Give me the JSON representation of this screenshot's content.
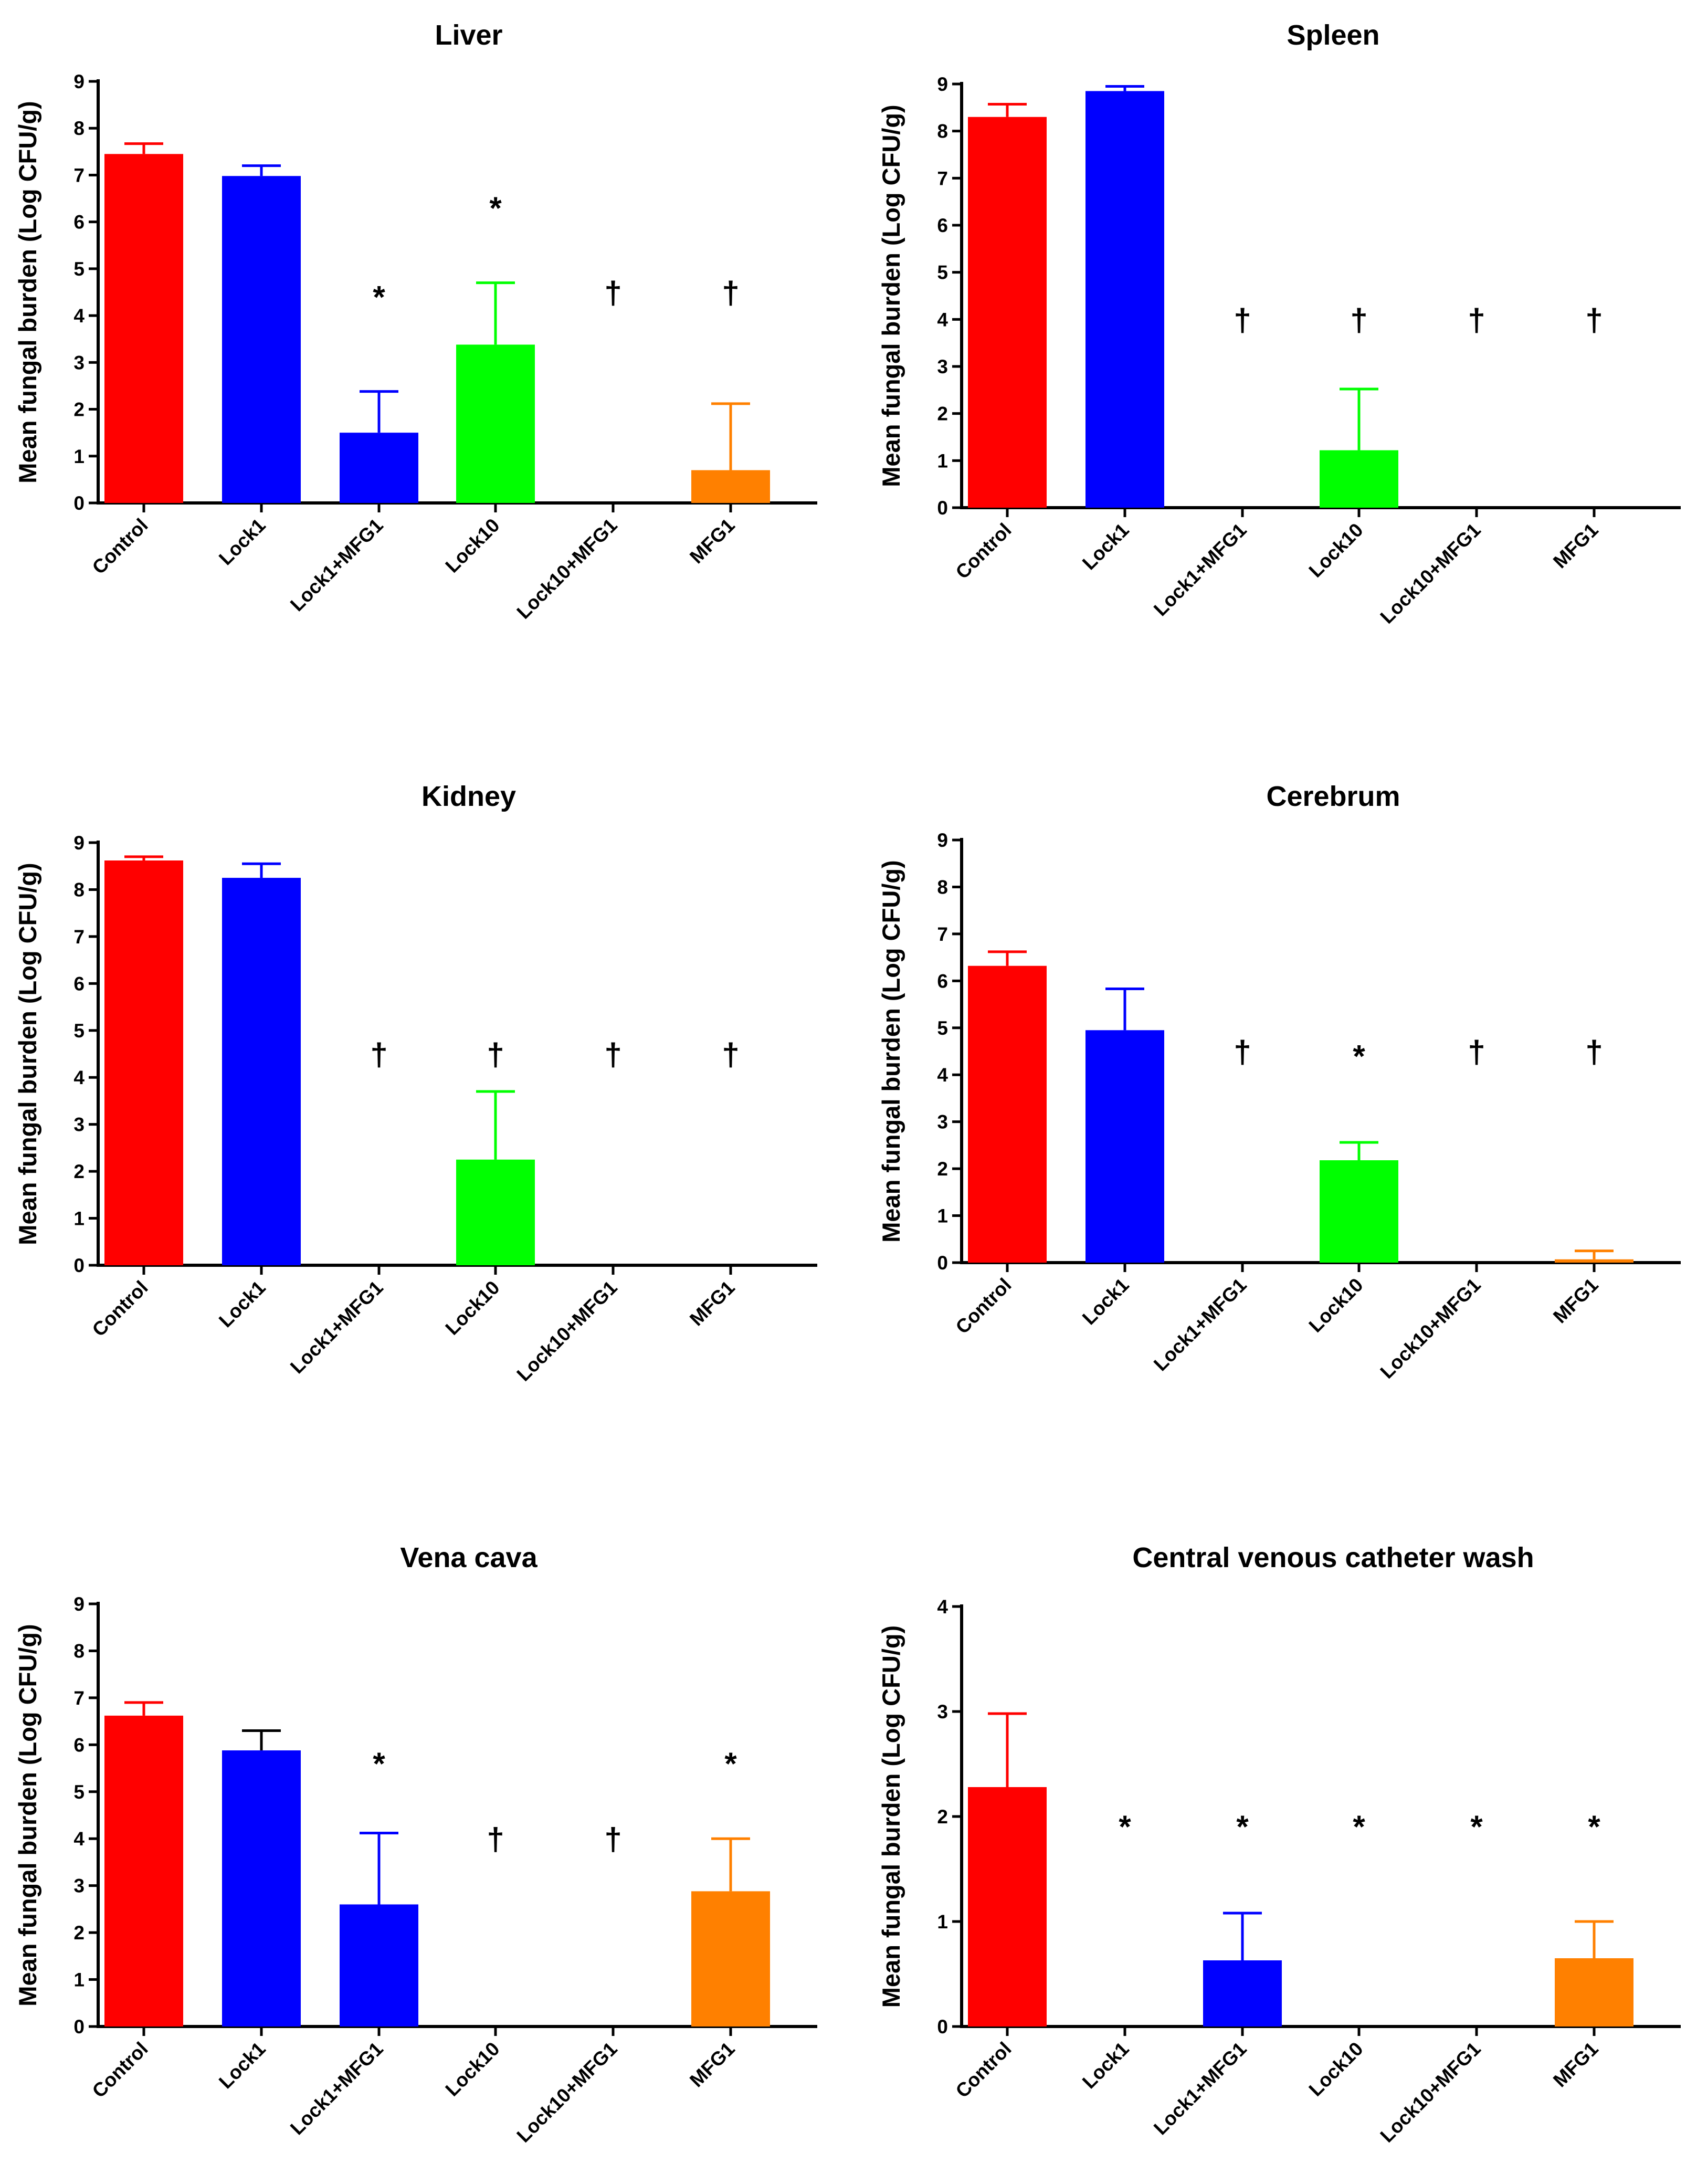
{
  "figure": {
    "ylabel": "Mean fungal burden (Log CFU/g)",
    "categories": [
      "Control",
      "Lock1",
      "Lock1+MFG1",
      "Lock10",
      "Lock10+MFG1",
      "MFG1"
    ]
  },
  "chart_data": [
    {
      "type": "bar",
      "title": "Liver",
      "ylabel": "Mean fungal burden (Log CFU/g)",
      "ylim": [
        0,
        9
      ],
      "yticks": [
        0,
        1,
        2,
        3,
        4,
        5,
        6,
        7,
        8,
        9
      ],
      "categories": [
        "Control",
        "Lock1",
        "Lock1+MFG1",
        "Lock10",
        "Lock10+MFG1",
        "MFG1"
      ],
      "values": [
        7.45,
        6.98,
        1.5,
        3.38,
        0,
        0.7
      ],
      "errors": [
        0.22,
        0.22,
        0.88,
        1.32,
        0,
        1.42
      ],
      "colors": [
        "#ff0000",
        "#0000ff",
        "#0000ff",
        "#00ff00",
        "#ffffff",
        "#ff8000"
      ],
      "annotations": [
        "",
        "",
        "*",
        "*",
        "†",
        "†"
      ],
      "annotation_y": [
        0,
        0,
        4.5,
        6.4,
        4.5,
        4.5
      ]
    },
    {
      "type": "bar",
      "title": "Spleen",
      "ylabel": "Mean fungal burden (Log CFU/g)",
      "ylim": [
        0,
        9
      ],
      "yticks": [
        0,
        1,
        2,
        3,
        4,
        5,
        6,
        7,
        8,
        9
      ],
      "categories": [
        "Control",
        "Lock1",
        "Lock1+MFG1",
        "Lock10",
        "Lock10+MFG1",
        "MFG1"
      ],
      "values": [
        8.3,
        8.85,
        0,
        1.22,
        0,
        0
      ],
      "errors": [
        0.27,
        0.1,
        0,
        1.3,
        0,
        0
      ],
      "colors": [
        "#ff0000",
        "#0000ff",
        "#0000ff",
        "#00ff00",
        "#ffffff",
        "#ff8000"
      ],
      "annotations": [
        "",
        "",
        "†",
        "†",
        "†",
        "†"
      ],
      "annotation_y": [
        0,
        0,
        4.0,
        4.0,
        4.0,
        4.0
      ]
    },
    {
      "type": "bar",
      "title": "Kidney",
      "ylabel": "Mean fungal burden (Log CFU/g)",
      "ylim": [
        0,
        9
      ],
      "yticks": [
        0,
        1,
        2,
        3,
        4,
        5,
        6,
        7,
        8,
        9
      ],
      "categories": [
        "Control",
        "Lock1",
        "Lock1+MFG1",
        "Lock10",
        "Lock10+MFG1",
        "MFG1"
      ],
      "values": [
        8.62,
        8.25,
        0,
        2.25,
        0,
        0
      ],
      "errors": [
        0.08,
        0.3,
        0,
        1.45,
        0,
        0
      ],
      "colors": [
        "#ff0000",
        "#0000ff",
        "#0000ff",
        "#00ff00",
        "#ffffff",
        "#ff8000"
      ],
      "annotations": [
        "",
        "",
        "†",
        "†",
        "†",
        "†"
      ],
      "annotation_y": [
        0,
        0,
        4.5,
        4.5,
        4.5,
        4.5
      ]
    },
    {
      "type": "bar",
      "title": "Cerebrum",
      "ylabel": "Mean fungal burden (Log CFU/g)",
      "ylim": [
        0,
        9
      ],
      "yticks": [
        0,
        1,
        2,
        3,
        4,
        5,
        6,
        7,
        8,
        9
      ],
      "categories": [
        "Control",
        "Lock1",
        "Lock1+MFG1",
        "Lock10",
        "Lock10+MFG1",
        "MFG1"
      ],
      "values": [
        6.32,
        4.95,
        0,
        2.18,
        0,
        0.07
      ],
      "errors": [
        0.3,
        0.88,
        0,
        0.38,
        0,
        0.18
      ],
      "colors": [
        "#ff0000",
        "#0000ff",
        "#0000ff",
        "#00ff00",
        "#ffffff",
        "#ff8000"
      ],
      "annotations": [
        "",
        "",
        "†",
        "*",
        "†",
        "†"
      ],
      "annotation_y": [
        0,
        0,
        4.5,
        4.5,
        4.5,
        4.5
      ]
    },
    {
      "type": "bar",
      "title": "Vena cava",
      "ylabel": "Mean fungal burden (Log CFU/g)",
      "ylim": [
        0,
        9
      ],
      "yticks": [
        0,
        1,
        2,
        3,
        4,
        5,
        6,
        7,
        8,
        9
      ],
      "categories": [
        "Control",
        "Lock1",
        "Lock1+MFG1",
        "Lock10",
        "Lock10+MFG1",
        "MFG1"
      ],
      "values": [
        6.62,
        5.88,
        2.6,
        0,
        0,
        2.88
      ],
      "errors": [
        0.28,
        0.42,
        1.52,
        0,
        0,
        1.12
      ],
      "colors": [
        "#ff0000",
        "#0000ff",
        "#0000ff",
        "#00ff00",
        "#ffffff",
        "#ff8000"
      ],
      "err_colors": [
        "#ff0000",
        "#000000",
        "#0000ff",
        "#00ff00",
        "#ffffff",
        "#ff8000"
      ],
      "annotations": [
        "",
        "",
        "*",
        "†",
        "†",
        "*"
      ],
      "annotation_y": [
        0,
        0,
        5.7,
        4.0,
        4.0,
        5.7
      ]
    },
    {
      "type": "bar",
      "title": "Central venous catheter wash",
      "ylabel": "Mean fungal burden (Log CFU/g)",
      "ylim": [
        0,
        4
      ],
      "yticks": [
        0,
        1,
        2,
        3,
        4
      ],
      "categories": [
        "Control",
        "Lock1",
        "Lock1+MFG1",
        "Lock10",
        "Lock10+MFG1",
        "MFG1"
      ],
      "values": [
        2.28,
        0,
        0.63,
        0,
        0,
        0.65
      ],
      "errors": [
        0.7,
        0,
        0.45,
        0,
        0,
        0.35
      ],
      "colors": [
        "#ff0000",
        "#0000ff",
        "#0000ff",
        "#00ff00",
        "#ffffff",
        "#ff8000"
      ],
      "annotations": [
        "",
        "*",
        "*",
        "*",
        "*",
        "*"
      ],
      "annotation_y": [
        0,
        1.95,
        1.95,
        1.95,
        1.95,
        1.95
      ]
    }
  ]
}
